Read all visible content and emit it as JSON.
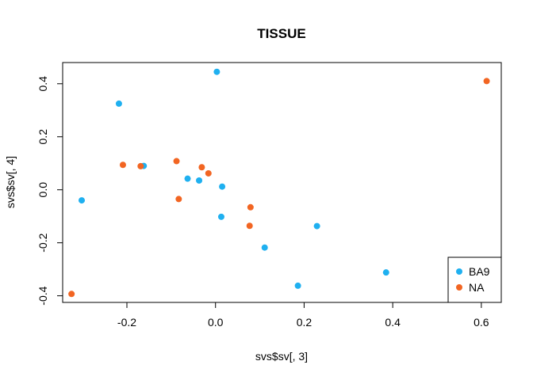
{
  "chart_data": {
    "type": "scatter",
    "title": "TISSUE",
    "xlabel": "svs$sv[, 3]",
    "ylabel": "svs$sv[, 4]",
    "xlim": [
      -0.345,
      0.645
    ],
    "ylim": [
      -0.425,
      0.48
    ],
    "xticks": [
      -0.2,
      0.0,
      0.2,
      0.4,
      0.6
    ],
    "xtick_labels": [
      "-0.2",
      "0.0",
      "0.2",
      "0.4",
      "0.6"
    ],
    "yticks": [
      -0.4,
      -0.2,
      0.0,
      0.2,
      0.4
    ],
    "ytick_labels": [
      "-0.4",
      "-0.2",
      "0.0",
      "0.2",
      "0.4"
    ],
    "grid": false,
    "legend_position": "bottom-right",
    "series": [
      {
        "name": "BA9",
        "color": "#1FB0F0",
        "points": [
          [
            0.003,
            0.445
          ],
          [
            -0.218,
            0.325
          ],
          [
            -0.162,
            0.09
          ],
          [
            -0.063,
            0.042
          ],
          [
            -0.037,
            0.035
          ],
          [
            0.015,
            0.012
          ],
          [
            -0.302,
            -0.04
          ],
          [
            0.013,
            -0.102
          ],
          [
            0.229,
            -0.137
          ],
          [
            0.111,
            -0.218
          ],
          [
            0.385,
            -0.312
          ],
          [
            0.186,
            -0.362
          ]
        ]
      },
      {
        "name": "NA",
        "color": "#F26522",
        "points": [
          [
            0.612,
            0.41
          ],
          [
            -0.209,
            0.094
          ],
          [
            -0.169,
            0.089
          ],
          [
            -0.088,
            0.108
          ],
          [
            -0.031,
            0.085
          ],
          [
            -0.016,
            0.062
          ],
          [
            -0.083,
            -0.035
          ],
          [
            0.079,
            -0.066
          ],
          [
            0.077,
            -0.136
          ],
          [
            -0.325,
            -0.393
          ]
        ]
      }
    ]
  }
}
